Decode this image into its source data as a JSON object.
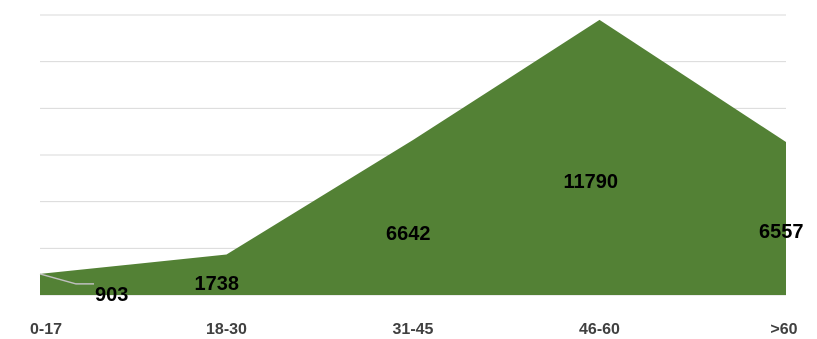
{
  "chart_data": {
    "type": "area",
    "categories": [
      "0-17",
      "18-30",
      "31-45",
      "46-60",
      ">60"
    ],
    "values": [
      903,
      1738,
      6642,
      11790,
      6557
    ],
    "data_labels": [
      "903",
      "1738",
      "6642",
      "11790",
      "6557"
    ],
    "ylim": [
      0,
      12000
    ],
    "y_gridline_step": 2000,
    "grid": true,
    "legend": "none",
    "series_color": "#538135",
    "gridline_color": "#d9d9d9",
    "tick_label_color": "#404040"
  }
}
